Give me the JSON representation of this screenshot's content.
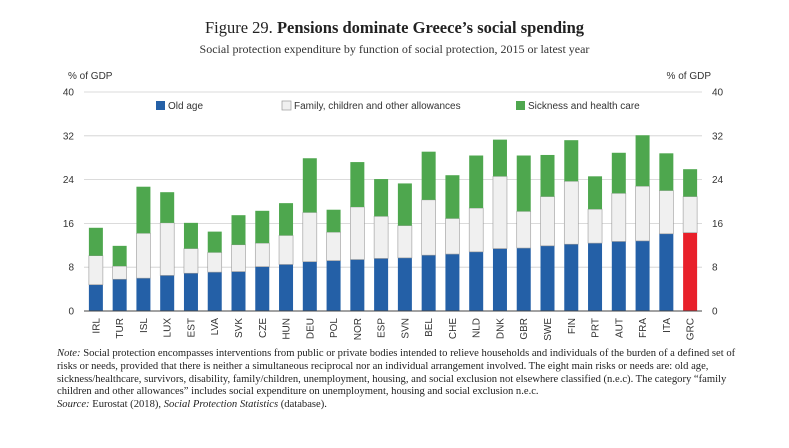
{
  "figure": {
    "number": "Figure 29.",
    "title": "Pensions dominate Greece’s social spending",
    "subtitle": "Social protection expenditure by function of social protection, 2015 or latest year"
  },
  "colors": {
    "old_age": "#2460a7",
    "family": "#f0f0f0",
    "sickness": "#4ea74e",
    "highlight": "#e8202a",
    "axis": "#555555",
    "grid": "#cfcfcf"
  },
  "chart_data": {
    "type": "bar",
    "stacked": true,
    "categories": [
      "IRL",
      "TUR",
      "ISL",
      "LUX",
      "EST",
      "LVA",
      "SVK",
      "CZE",
      "HUN",
      "DEU",
      "POL",
      "NOR",
      "ESP",
      "SVN",
      "BEL",
      "CHE",
      "NLD",
      "DNK",
      "GBR",
      "SWE",
      "FIN",
      "PRT",
      "AUT",
      "FRA",
      "ITA",
      "GRC"
    ],
    "series": [
      {
        "name": "Old age",
        "key": "old_age",
        "values": [
          4.8,
          5.8,
          6.0,
          6.5,
          6.9,
          7.1,
          7.2,
          8.1,
          8.5,
          9.0,
          9.2,
          9.4,
          9.6,
          9.7,
          10.2,
          10.4,
          10.8,
          11.4,
          11.5,
          11.9,
          12.2,
          12.4,
          12.7,
          12.8,
          14.1,
          14.3
        ]
      },
      {
        "name": "Family, children and other allowances",
        "key": "family",
        "values": [
          5.3,
          2.4,
          8.2,
          9.6,
          4.5,
          3.6,
          4.9,
          4.3,
          5.3,
          9.0,
          5.2,
          9.6,
          7.7,
          5.9,
          10.1,
          6.5,
          8.0,
          13.2,
          6.7,
          9.0,
          11.5,
          6.2,
          8.8,
          10.0,
          7.9,
          6.6
        ]
      },
      {
        "name": "Sickness and health care",
        "key": "sickness",
        "values": [
          5.1,
          3.7,
          8.5,
          5.6,
          4.7,
          3.8,
          5.4,
          5.9,
          5.9,
          9.9,
          4.1,
          8.2,
          6.8,
          7.7,
          8.8,
          7.9,
          9.6,
          6.7,
          10.2,
          7.6,
          7.5,
          6.0,
          7.4,
          9.3,
          6.8,
          5.0
        ]
      }
    ],
    "highlight_category": "GRC",
    "title": "Pensions dominate Greece’s social spending",
    "ylabel_left": "% of GDP",
    "ylabel_right": "% of GDP",
    "ylim": [
      0,
      40
    ],
    "yticks": [
      0,
      8,
      16,
      24,
      32,
      40
    ],
    "legend_position": "top"
  },
  "notes": {
    "note_label": "Note:",
    "note_text": "Social protection encompasses interventions from public or private bodies intended to relieve households and individuals of the burden of a defined set of risks or needs, provided that there is neither a simultaneous reciprocal nor an individual arrangement involved. The eight main risks or needs are: old age, sickness/healthcare, survivors, disability, family/children, unemployment, housing, and social exclusion not elsewhere classified (n.e.c). The category “family children and other allowances” includes social expenditure on unemployment, housing and social exclusion n.e.c.",
    "source_label": "Source:",
    "source_text": "Eurostat (2018),",
    "source_db": "Social Protection Statistics",
    "source_end": "(database)."
  }
}
